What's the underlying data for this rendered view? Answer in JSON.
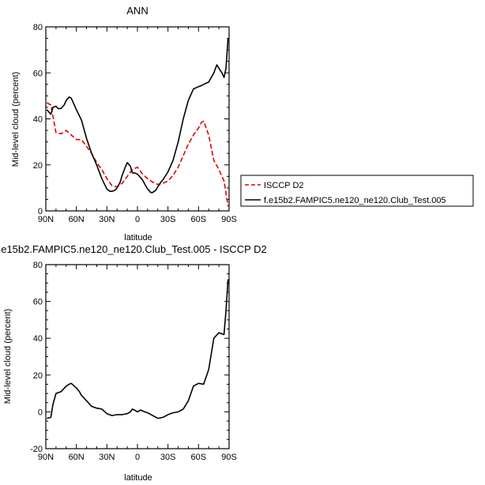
{
  "chart_data": [
    {
      "type": "line",
      "title": "ANN",
      "xlabel": "latitude",
      "ylabel": "Mid-level cloud (percent)",
      "xlim": [
        90,
        -90
      ],
      "ylim": [
        0,
        80
      ],
      "x_ticks": [
        90,
        60,
        30,
        0,
        -30,
        -60,
        -90
      ],
      "x_tick_labels": [
        "90N",
        "60N",
        "30N",
        "0",
        "30S",
        "60S",
        "90S"
      ],
      "y_ticks": [
        0,
        20,
        40,
        60,
        80
      ],
      "y_tick_labels": [
        "0",
        "20",
        "40",
        "60",
        "80"
      ],
      "series": [
        {
          "name": "ISCCP D2",
          "color": "#e00000",
          "style": "dashed",
          "x": [
            89,
            85,
            80,
            75,
            70,
            65,
            60,
            55,
            50,
            45,
            40,
            35,
            30,
            25,
            20,
            15,
            10,
            5,
            0,
            -5,
            -10,
            -15,
            -20,
            -25,
            -30,
            -35,
            -40,
            -45,
            -50,
            -55,
            -60,
            -63,
            -65,
            -70,
            -75,
            -80,
            -85,
            -89
          ],
          "y": [
            47,
            46,
            34,
            33.5,
            35,
            33,
            31,
            31,
            28,
            25,
            21,
            18,
            14,
            11,
            10.5,
            12,
            15,
            18,
            19,
            16,
            14,
            12.5,
            11.5,
            12,
            13,
            15.5,
            19,
            24,
            29,
            33,
            36,
            38.5,
            39,
            33,
            22,
            18,
            13,
            2
          ]
        },
        {
          "name": "f.e15b2.FAMPIC5.ne120_ne120.Club_Test.005",
          "color": "#000000",
          "style": "solid",
          "x": [
            89,
            85,
            83,
            80,
            78,
            75,
            72,
            70,
            67,
            65,
            60,
            55,
            50,
            45,
            40,
            35,
            30,
            27,
            25,
            22,
            20,
            17,
            15,
            12,
            10,
            7,
            5,
            3,
            0,
            -3,
            -5,
            -8,
            -10,
            -13,
            -15,
            -18,
            -20,
            -23,
            -25,
            -30,
            -35,
            -40,
            -45,
            -50,
            -55,
            -60,
            -63,
            -65,
            -70,
            -75,
            -78,
            -80,
            -83,
            -85,
            -87,
            -89
          ],
          "y": [
            44,
            42,
            45,
            45.5,
            44.5,
            44.5,
            46,
            48,
            49.5,
            49,
            44,
            39.5,
            31.5,
            25,
            20,
            14,
            9.5,
            8.5,
            8.5,
            9,
            10,
            12.5,
            15.5,
            19,
            21,
            19.5,
            16.5,
            16.5,
            16,
            14.5,
            13.5,
            11,
            9.5,
            8,
            8,
            9,
            10.5,
            12.5,
            13.5,
            17,
            22,
            30,
            40,
            48,
            53,
            54,
            54.5,
            55,
            56,
            60,
            63.5,
            62,
            60,
            58,
            62,
            75
          ]
        }
      ]
    },
    {
      "type": "line",
      "title": "f.e15b2.FAMPIC5.ne120_ne120.Club_Test.005 - ISCCP D2",
      "xlabel": "latitude",
      "ylabel": "Mid-level cloud (percent)",
      "xlim": [
        90,
        -90
      ],
      "ylim": [
        -20,
        80
      ],
      "x_ticks": [
        90,
        60,
        30,
        0,
        -30,
        -60,
        -90
      ],
      "x_tick_labels": [
        "90N",
        "60N",
        "30N",
        "0",
        "30S",
        "60S",
        "90S"
      ],
      "y_ticks": [
        -20,
        0,
        20,
        40,
        60,
        80
      ],
      "y_tick_labels": [
        "-20",
        "0",
        "20",
        "40",
        "60",
        "80"
      ],
      "series": [
        {
          "color": "#000000",
          "style": "solid",
          "x": [
            89,
            85,
            83,
            80,
            75,
            70,
            67,
            65,
            60,
            57,
            55,
            50,
            45,
            40,
            35,
            30,
            25,
            20,
            15,
            10,
            7,
            5,
            3,
            0,
            -3,
            -5,
            -10,
            -15,
            -20,
            -25,
            -30,
            -35,
            -40,
            -45,
            -50,
            -55,
            -60,
            -65,
            -70,
            -75,
            -80,
            -85,
            -87,
            -89
          ],
          "y": [
            -3.5,
            -3,
            4,
            10,
            11,
            14,
            15,
            15.5,
            13,
            11,
            9,
            6,
            3,
            2,
            1.5,
            -1,
            -2,
            -1.5,
            -1.5,
            -1,
            0,
            1.5,
            1,
            0,
            1,
            0.5,
            -0.5,
            -2,
            -3.5,
            -3,
            -1.5,
            -0.5,
            0,
            1.5,
            6,
            14,
            15.5,
            15,
            23,
            40,
            43,
            42,
            55,
            72
          ]
        }
      ]
    }
  ]
}
